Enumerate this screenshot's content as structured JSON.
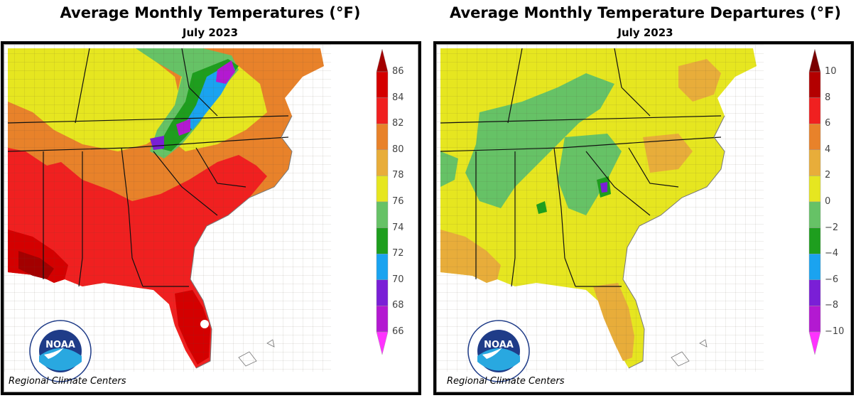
{
  "left_panel": {
    "title": "Average Monthly Temperatures (°F)",
    "subtitle": "July 2023",
    "legend_labels": [
      "86",
      "84",
      "82",
      "80",
      "78",
      "76",
      "74",
      "72",
      "70",
      "68",
      "66"
    ],
    "legend_colors": [
      "#a30000",
      "#d40000",
      "#f02020",
      "#e8822a",
      "#e8ad3a",
      "#e6e620",
      "#66c266",
      "#1e9e1e",
      "#1aa3f0",
      "#7a1fd6",
      "#b319d1",
      "#ff33ff"
    ],
    "credit": "Regional Climate Centers",
    "logo_text": "NOAA"
  },
  "right_panel": {
    "title": "Average Monthly Temperature Departures (°F)",
    "subtitle": "July 2023",
    "legend_labels": [
      "10",
      "8",
      "6",
      "4",
      "2",
      "0",
      "−2",
      "−4",
      "−6",
      "−8",
      "−10"
    ],
    "legend_colors": [
      "#7a0000",
      "#b30000",
      "#f02020",
      "#e8822a",
      "#e8ad3a",
      "#e6e620",
      "#66c266",
      "#1e9e1e",
      "#1aa3f0",
      "#7a1fd6",
      "#b319d1",
      "#ff33ff"
    ],
    "credit": "Regional Climate Centers",
    "logo_text": "NOAA"
  }
}
